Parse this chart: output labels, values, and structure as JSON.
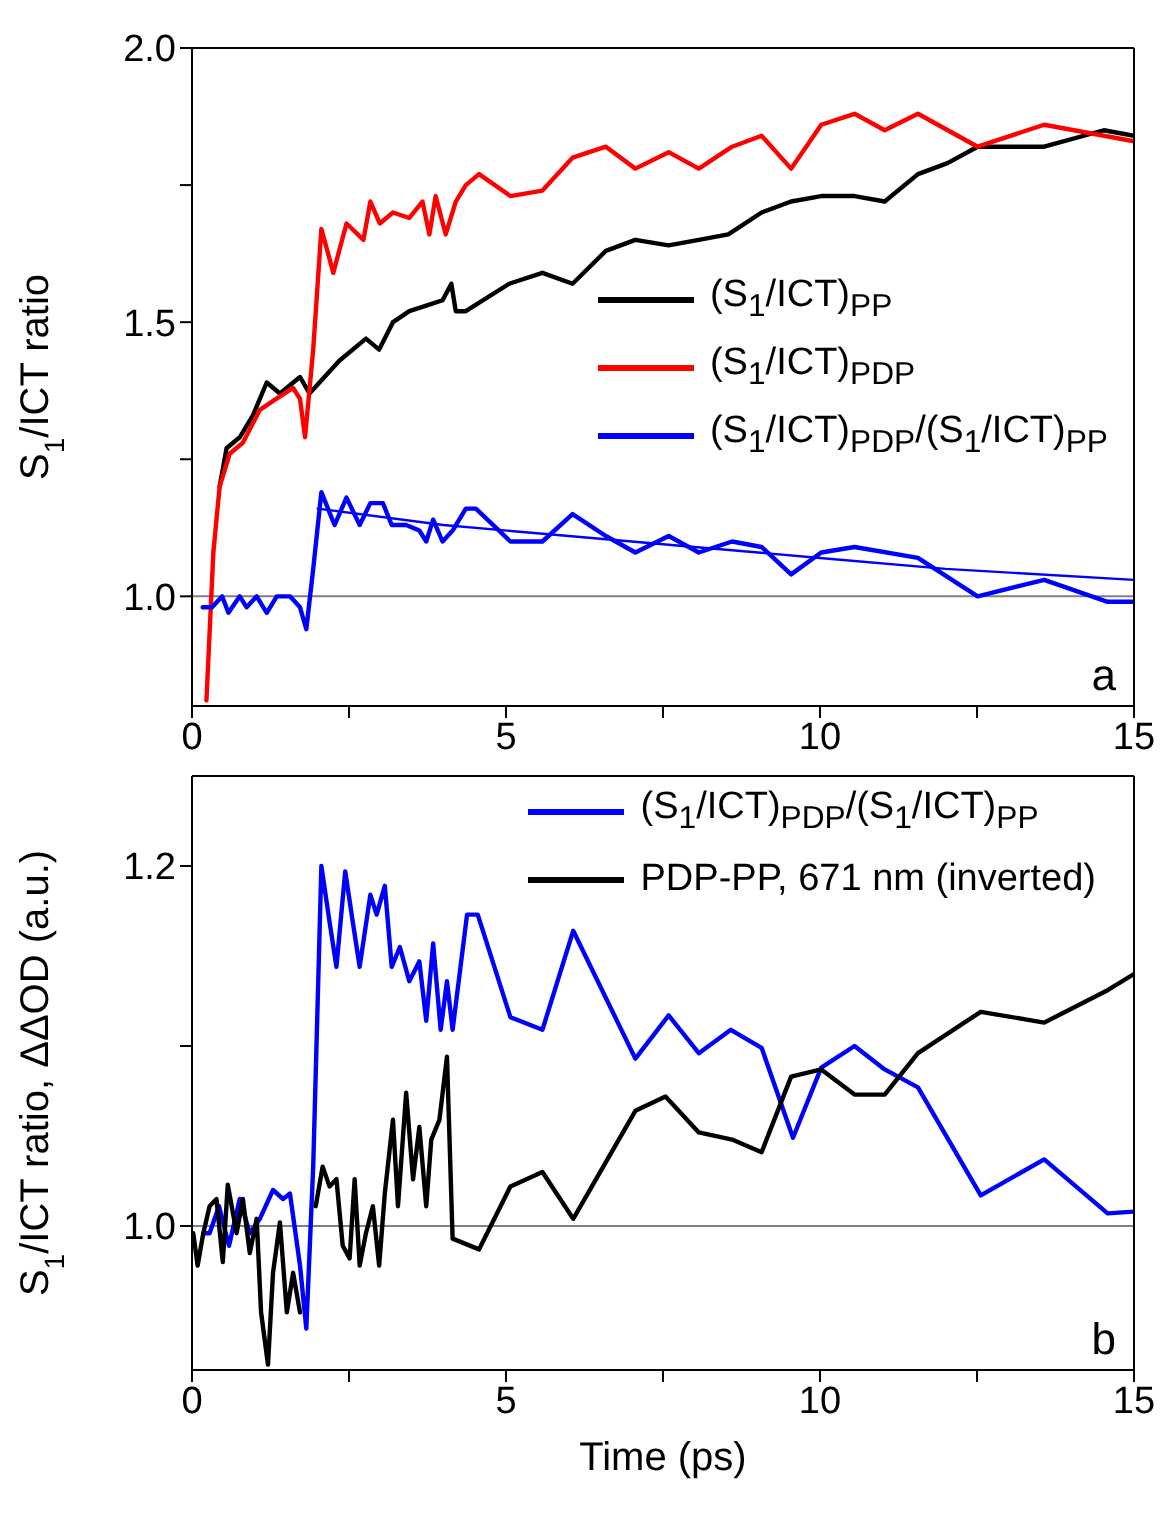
{
  "chart_data": [
    {
      "type": "line",
      "ylabel": "S$_{1}$/ICT ratio",
      "xlim": [
        0,
        15
      ],
      "xticks": [
        0,
        {
          "value": 2.5,
          "label": null
        },
        5,
        {
          "value": 7.5,
          "label": null
        },
        10,
        {
          "value": 12.5,
          "label": null
        },
        15
      ],
      "ylim": [
        0.8,
        2.0
      ],
      "yticks": [
        {
          "value": 1.0,
          "label": "1.0"
        },
        {
          "value": 1.25,
          "label": null
        },
        {
          "value": 1.5,
          "label": "1.5"
        },
        {
          "value": 1.75,
          "label": null
        },
        {
          "value": 2.0,
          "label": "2.0"
        }
      ],
      "legend": "right",
      "marker": "none",
      "line_style": "solid",
      "ref_lines": [
        {
          "axis": "y",
          "value": 1.0,
          "color": "#808080"
        }
      ],
      "annotations": [
        "a"
      ],
      "series": [
        {
          "name": "(S$_{1}$/ICT)$_{PP}$",
          "color": "#000000",
          "x": [
            0.44,
            0.55,
            0.76,
            0.97,
            1.19,
            1.4,
            1.72,
            1.87,
            2.35,
            2.77,
            2.98,
            3.2,
            3.46,
            3.73,
            3.99,
            4.13,
            4.2,
            4.36,
            5.05,
            5.58,
            6.06,
            6.59,
            7.06,
            7.59,
            8.07,
            8.54,
            9.07,
            9.54,
            10.02,
            10.55,
            11.03,
            11.56,
            12.03,
            12.51,
            13.57,
            14.52,
            15.0
          ],
          "values": [
            1.2,
            1.27,
            1.29,
            1.33,
            1.39,
            1.37,
            1.4,
            1.37,
            1.43,
            1.47,
            1.45,
            1.5,
            1.52,
            1.53,
            1.54,
            1.57,
            1.52,
            1.52,
            1.57,
            1.59,
            1.57,
            1.63,
            1.65,
            1.64,
            1.65,
            1.66,
            1.7,
            1.72,
            1.73,
            1.73,
            1.72,
            1.77,
            1.79,
            1.82,
            1.82,
            1.85,
            1.84
          ]
        },
        {
          "name": "(S$_{1}$/ICT)$_{PDP}$",
          "color": "#ff0000",
          "x": [
            0.23,
            0.34,
            0.44,
            0.6,
            0.81,
            1.08,
            1.34,
            1.61,
            1.72,
            1.8,
            1.93,
            2.06,
            2.25,
            2.46,
            2.73,
            2.84,
            2.99,
            3.2,
            3.46,
            3.67,
            3.78,
            3.88,
            4.04,
            4.2,
            4.36,
            4.57,
            5.07,
            5.58,
            6.06,
            6.59,
            7.06,
            7.59,
            8.07,
            8.6,
            9.07,
            9.54,
            10.02,
            10.55,
            11.03,
            11.56,
            12.51,
            13.57,
            15.0
          ],
          "values": [
            0.81,
            1.08,
            1.2,
            1.26,
            1.28,
            1.34,
            1.36,
            1.38,
            1.36,
            1.29,
            1.45,
            1.67,
            1.59,
            1.68,
            1.65,
            1.72,
            1.68,
            1.7,
            1.69,
            1.72,
            1.66,
            1.73,
            1.66,
            1.72,
            1.75,
            1.77,
            1.73,
            1.74,
            1.8,
            1.82,
            1.78,
            1.81,
            1.78,
            1.82,
            1.84,
            1.78,
            1.86,
            1.88,
            1.85,
            1.88,
            1.82,
            1.86,
            1.83
          ]
        },
        {
          "name": "(S$_{1}$/ICT)$_{PDP}$/(S$_{1}$/ICT)$_{PP}$",
          "color": "#0000ff",
          "x": [
            0.17,
            0.32,
            0.48,
            0.58,
            0.76,
            0.87,
            1.03,
            1.19,
            1.35,
            1.56,
            1.72,
            1.82,
            1.93,
            2.06,
            2.27,
            2.46,
            2.67,
            2.84,
            3.04,
            3.18,
            3.41,
            3.62,
            3.73,
            3.84,
            3.99,
            4.15,
            4.36,
            4.52,
            5.07,
            5.58,
            6.06,
            6.59,
            7.06,
            7.59,
            8.07,
            8.6,
            9.07,
            9.54,
            10.02,
            10.55,
            11.56,
            12.51,
            13.57,
            14.58,
            15.0
          ],
          "values": [
            0.98,
            0.98,
            1.0,
            0.97,
            1.0,
            0.98,
            1.0,
            0.97,
            1.0,
            1.0,
            0.98,
            0.94,
            1.05,
            1.19,
            1.13,
            1.18,
            1.13,
            1.17,
            1.17,
            1.13,
            1.13,
            1.12,
            1.1,
            1.14,
            1.1,
            1.12,
            1.16,
            1.16,
            1.1,
            1.1,
            1.15,
            1.11,
            1.08,
            1.11,
            1.08,
            1.1,
            1.09,
            1.04,
            1.08,
            1.09,
            1.07,
            1.0,
            1.03,
            0.99,
            0.99
          ]
        },
        {
          "type": "line",
          "color": "#0000ff",
          "x": [
            2,
            4,
            6,
            8,
            10,
            12,
            15
          ],
          "values": [
            1.16,
            1.13,
            1.11,
            1.09,
            1.07,
            1.05,
            1.03
          ]
        }
      ]
    },
    {
      "type": "line",
      "xlabel": "Time (ps)",
      "ylabel": "S$_{1}$/ICT ratio, ΔΔOD (a.u.)",
      "xlim": [
        0,
        15
      ],
      "xticks": [
        0,
        {
          "value": 2.5,
          "label": null
        },
        5,
        {
          "value": 7.5,
          "label": null
        },
        10,
        {
          "value": 12.5,
          "label": null
        },
        15
      ],
      "ylim": [
        0.92,
        1.25
      ],
      "yticks": [
        {
          "value": 1.0,
          "label": "1.0"
        },
        {
          "value": 1.1,
          "label": null
        },
        {
          "value": 1.2,
          "label": "1.2"
        }
      ],
      "legend": "top right",
      "marker": "none",
      "line_style": "solid",
      "ref_lines": [
        {
          "axis": "y",
          "value": 1.0,
          "color": "#808080"
        }
      ],
      "annotations": [
        "b"
      ],
      "series": [
        {
          "name": "(S$_{1}$/ICT)$_{PDP}$/(S$_{1}$/ICT)$_{PP}$",
          "color": "#0000ff",
          "x": [
            0.18,
            0.28,
            0.43,
            0.59,
            0.76,
            0.92,
            1.08,
            1.29,
            1.45,
            1.56,
            1.72,
            1.82,
            1.93,
            2.06,
            2.19,
            2.3,
            2.44,
            2.56,
            2.67,
            2.84,
            2.94,
            3.07,
            3.18,
            3.31,
            3.46,
            3.62,
            3.73,
            3.84,
            3.96,
            4.06,
            4.15,
            4.38,
            4.55,
            5.07,
            5.58,
            6.07,
            7.06,
            7.59,
            8.07,
            8.58,
            9.07,
            9.57,
            10.02,
            10.55,
            11.03,
            11.56,
            12.56,
            13.57,
            14.58,
            15.0
          ],
          "values": [
            0.996,
            0.996,
            1.011,
            0.989,
            1.015,
            0.996,
            1.004,
            1.02,
            1.015,
            1.018,
            0.978,
            0.943,
            1.033,
            1.2,
            1.169,
            1.144,
            1.197,
            1.169,
            1.144,
            1.184,
            1.173,
            1.189,
            1.144,
            1.155,
            1.136,
            1.147,
            1.114,
            1.157,
            1.109,
            1.136,
            1.109,
            1.173,
            1.173,
            1.116,
            1.109,
            1.164,
            1.093,
            1.117,
            1.096,
            1.109,
            1.099,
            1.049,
            1.088,
            1.1,
            1.087,
            1.077,
            1.017,
            1.037,
            1.007,
            1.008
          ]
        },
        {
          "name": "PDP-PP, 671 nm (inverted)",
          "color": "#000000",
          "x": [
            0.02,
            0.09,
            0.18,
            0.28,
            0.39,
            0.49,
            0.57,
            0.71,
            0.81,
            0.92,
            1.03,
            1.1,
            1.21,
            1.29,
            1.4,
            1.51,
            1.61,
            1.72,
            1.82,
            1.9,
            1.97,
            2.08,
            2.19,
            2.3,
            2.4,
            2.51,
            2.59,
            2.67,
            2.77,
            2.88,
            2.98,
            3.07,
            3.2,
            3.28,
            3.41,
            3.52,
            3.62,
            3.73,
            3.81,
            3.94,
            4.06,
            4.15,
            4.57,
            5.07,
            5.58,
            6.07,
            7.06,
            7.54,
            8.07,
            8.6,
            9.07,
            9.54,
            10.02,
            10.55,
            11.03,
            11.56,
            12.56,
            13.57,
            14.58,
            15.0
          ],
          "values": [
            0.996,
            0.978,
            0.996,
            1.011,
            1.015,
            0.98,
            1.023,
            0.996,
            1.015,
            0.985,
            1.004,
            0.952,
            0.923,
            0.974,
            1.002,
            0.952,
            0.974,
            0.952,
            null,
            null,
            1.011,
            1.033,
            1.022,
            1.026,
            0.989,
            0.982,
            1.026,
            0.978,
            0.996,
            1.011,
            0.978,
            1.018,
            1.059,
            1.011,
            1.074,
            1.026,
            1.055,
            1.011,
            1.048,
            1.059,
            1.094,
            0.993,
            0.987,
            1.022,
            1.03,
            1.004,
            1.064,
            1.072,
            1.052,
            1.048,
            1.041,
            1.083,
            1.087,
            1.073,
            1.073,
            1.096,
            1.119,
            1.113,
            1.131,
            1.14
          ]
        }
      ]
    }
  ]
}
